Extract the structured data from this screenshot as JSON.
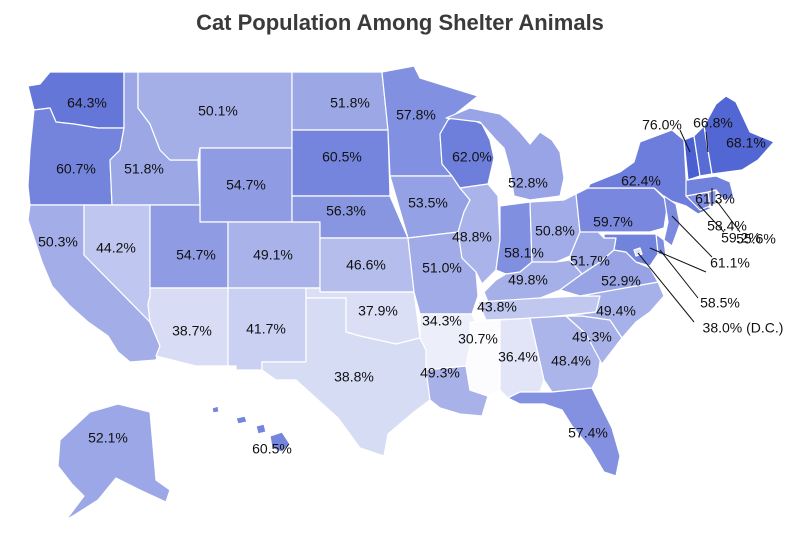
{
  "title": "Cat Population Among Shelter Animals",
  "color_scale": {
    "low": "#ffffff",
    "high": "#4a5fd2",
    "min": 30,
    "max": 70
  },
  "chart_data": {
    "type": "choropleth",
    "title": "Cat Population Among Shelter Animals",
    "unit": "%",
    "regions": [
      {
        "id": "WA",
        "value": 64.3,
        "label": "64.3%"
      },
      {
        "id": "OR",
        "value": 60.7,
        "label": "60.7%"
      },
      {
        "id": "CA",
        "value": 50.3,
        "label": "50.3%"
      },
      {
        "id": "ID",
        "value": 51.8,
        "label": "51.8%"
      },
      {
        "id": "NV",
        "value": 44.2,
        "label": "44.2%"
      },
      {
        "id": "MT",
        "value": 50.1,
        "label": "50.1%"
      },
      {
        "id": "WY",
        "value": 54.7,
        "label": "54.7%"
      },
      {
        "id": "UT",
        "value": 54.7,
        "label": "54.7%"
      },
      {
        "id": "AZ",
        "value": 38.7,
        "label": "38.7%"
      },
      {
        "id": "CO",
        "value": 49.1,
        "label": "49.1%"
      },
      {
        "id": "NM",
        "value": 41.7,
        "label": "41.7%"
      },
      {
        "id": "ND",
        "value": 51.8,
        "label": "51.8%"
      },
      {
        "id": "SD",
        "value": 60.5,
        "label": "60.5%"
      },
      {
        "id": "NE",
        "value": 56.3,
        "label": "56.3%"
      },
      {
        "id": "KS",
        "value": 46.6,
        "label": "46.6%"
      },
      {
        "id": "OK",
        "value": 37.9,
        "label": "37.9%"
      },
      {
        "id": "TX",
        "value": 38.8,
        "label": "38.8%"
      },
      {
        "id": "MN",
        "value": 57.8,
        "label": "57.8%"
      },
      {
        "id": "IA",
        "value": 53.5,
        "label": "53.5%"
      },
      {
        "id": "MO",
        "value": 51.0,
        "label": "51.0%"
      },
      {
        "id": "AR",
        "value": 34.3,
        "label": "34.3%"
      },
      {
        "id": "LA",
        "value": 49.3,
        "label": "49.3%"
      },
      {
        "id": "WI",
        "value": 62.0,
        "label": "62.0%"
      },
      {
        "id": "IL",
        "value": 48.8,
        "label": "48.8%"
      },
      {
        "id": "MI",
        "value": 52.8,
        "label": "52.8%"
      },
      {
        "id": "IN",
        "value": 58.1,
        "label": "58.1%"
      },
      {
        "id": "OH",
        "value": 50.8,
        "label": "50.8%"
      },
      {
        "id": "KY",
        "value": 49.8,
        "label": "49.8%"
      },
      {
        "id": "TN",
        "value": 43.8,
        "label": "43.8%"
      },
      {
        "id": "MS",
        "value": 30.7,
        "label": "30.7%"
      },
      {
        "id": "AL",
        "value": 36.4,
        "label": "36.4%"
      },
      {
        "id": "GA",
        "value": 48.4,
        "label": "48.4%"
      },
      {
        "id": "FL",
        "value": 57.4,
        "label": "57.4%"
      },
      {
        "id": "SC",
        "value": 49.3,
        "label": "49.3%"
      },
      {
        "id": "NC",
        "value": 49.4,
        "label": "49.4%"
      },
      {
        "id": "VA",
        "value": 52.9,
        "label": "52.9%"
      },
      {
        "id": "WV",
        "value": 51.7,
        "label": "51.7%"
      },
      {
        "id": "PA",
        "value": 59.7,
        "label": "59.7%"
      },
      {
        "id": "NY",
        "value": 62.4,
        "label": "62.4%"
      },
      {
        "id": "NJ",
        "value": 59.2,
        "label": "59.2%"
      },
      {
        "id": "DE",
        "value": 58.5,
        "label": "58.5%"
      },
      {
        "id": "MD",
        "value": 61.1,
        "label": "61.1%"
      },
      {
        "id": "DC",
        "value": 38.0,
        "label": "38.0% (D.C.)"
      },
      {
        "id": "CT",
        "value": 58.4,
        "label": "58.4%"
      },
      {
        "id": "RI",
        "value": 55.6,
        "label": "55.6%"
      },
      {
        "id": "MA",
        "value": 61.3,
        "label": "61.3%"
      },
      {
        "id": "VT",
        "value": 76.0,
        "label": "76.0%"
      },
      {
        "id": "NH",
        "value": 66.8,
        "label": "66.8%"
      },
      {
        "id": "ME",
        "value": 68.1,
        "label": "68.1%"
      },
      {
        "id": "AK",
        "value": 52.1,
        "label": "52.1%"
      },
      {
        "id": "HI",
        "value": 60.5,
        "label": "60.5%"
      }
    ]
  }
}
